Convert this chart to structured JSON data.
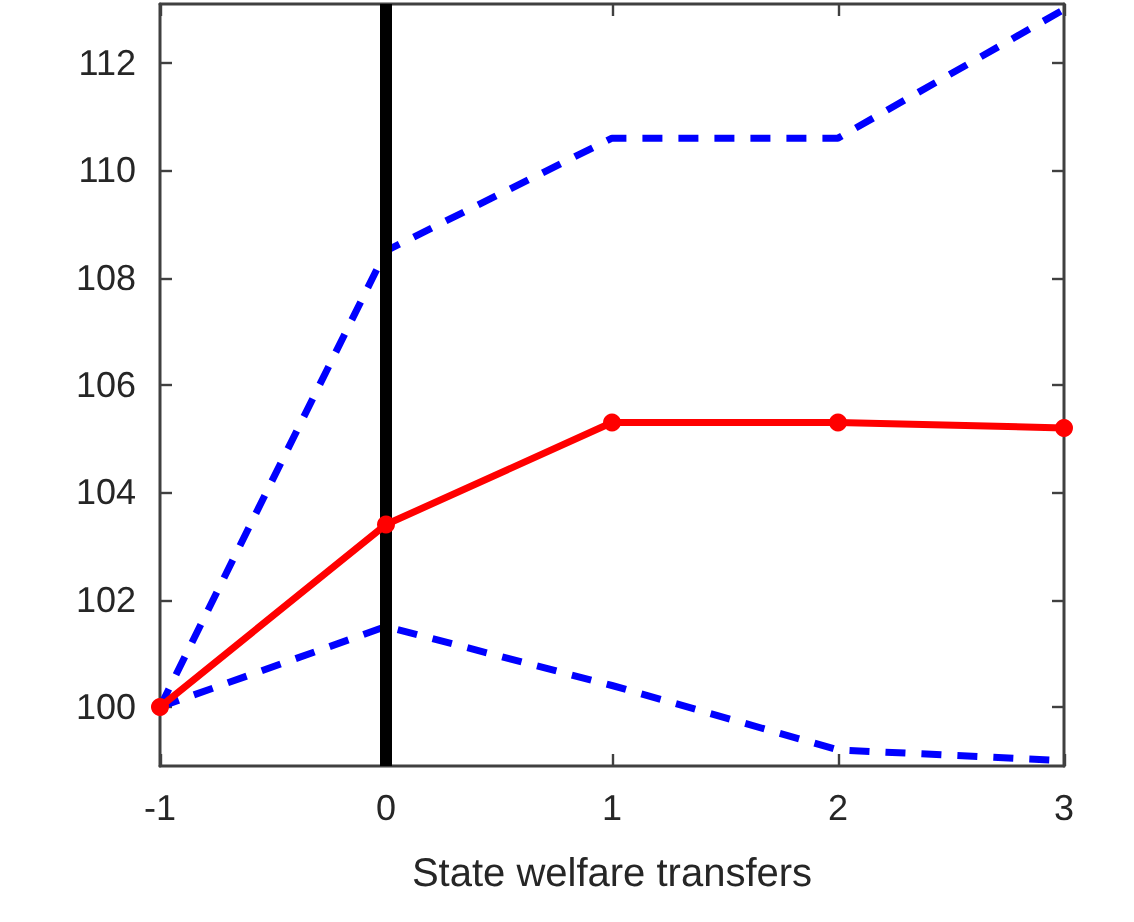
{
  "chart_data": {
    "type": "line",
    "xlabel": "State welfare transfers",
    "x": [
      -1,
      0,
      1,
      2,
      3
    ],
    "series": [
      {
        "color": "#ff0000",
        "values": [
          100,
          103.4,
          105.3,
          105.3,
          105.2
        ],
        "marker": "circle",
        "line_style": "solid"
      },
      {
        "color": "#0000ff",
        "values": [
          100,
          108.5,
          110.6,
          110.6,
          113
        ],
        "marker": "none",
        "line_style": "dashed"
      },
      {
        "color": "#0000ff",
        "values": [
          100,
          101.5,
          100.4,
          99.2,
          99
        ],
        "marker": "none",
        "line_style": "dashed"
      }
    ],
    "xlim": [
      -1,
      3
    ],
    "xticks": [
      -1,
      0,
      1,
      2,
      3
    ],
    "ylim": [
      98.9,
      113.1
    ],
    "yticks": [
      100,
      102,
      104,
      106,
      108,
      110,
      112
    ],
    "ref_lines": [
      {
        "axis": "x",
        "value": 0,
        "color": "#000000",
        "line_style": "solid"
      }
    ],
    "grid": false
  }
}
